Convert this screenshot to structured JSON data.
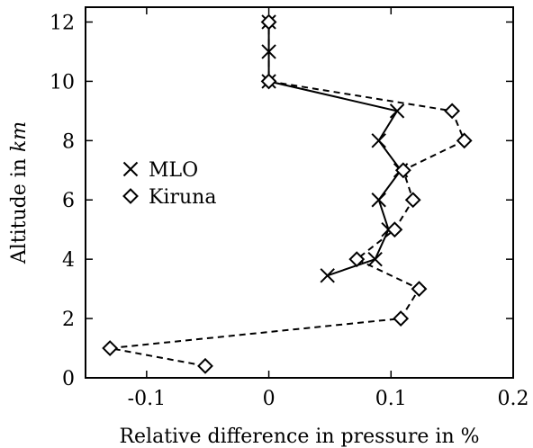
{
  "chart_data": {
    "type": "line",
    "xlabel": "Relative difference in pressure in %",
    "ylabel_prefix": "Altitude in ",
    "ylabel_unit": "km",
    "xlim": [
      -0.15,
      0.2
    ],
    "ylim": [
      0,
      12.5
    ],
    "xticks": [
      -0.1,
      0,
      0.1,
      0.2
    ],
    "xtick_labels": [
      "-0.1",
      "0",
      "0.1",
      "0.2"
    ],
    "yticks": [
      0,
      2,
      4,
      6,
      8,
      10,
      12
    ],
    "ytick_labels": [
      "0",
      "2",
      "4",
      "6",
      "8",
      "10",
      "12"
    ],
    "grid": false,
    "legend_placement": "left",
    "series": [
      {
        "name": "MLO",
        "marker": "x",
        "line_style": "solid",
        "color": "#000000",
        "x": [
          0.048,
          0.087,
          0.098,
          0.09,
          0.108,
          0.09,
          0.105,
          0.0,
          0.0,
          0.0
        ],
        "y": [
          3.45,
          4.0,
          5.0,
          6.0,
          7.0,
          8.0,
          9.0,
          10.0,
          11.0,
          12.0
        ]
      },
      {
        "name": "Kiruna",
        "marker": "diamond",
        "line_style": "dashed",
        "color": "#000000",
        "x": [
          -0.052,
          -0.13,
          0.108,
          0.123,
          0.072,
          0.103,
          0.118,
          0.11,
          0.16,
          0.15,
          0.0,
          0.0
        ],
        "y": [
          0.4,
          1.0,
          2.0,
          3.0,
          4.0,
          5.0,
          6.0,
          7.0,
          8.0,
          9.0,
          10.0,
          12.0
        ]
      }
    ]
  }
}
